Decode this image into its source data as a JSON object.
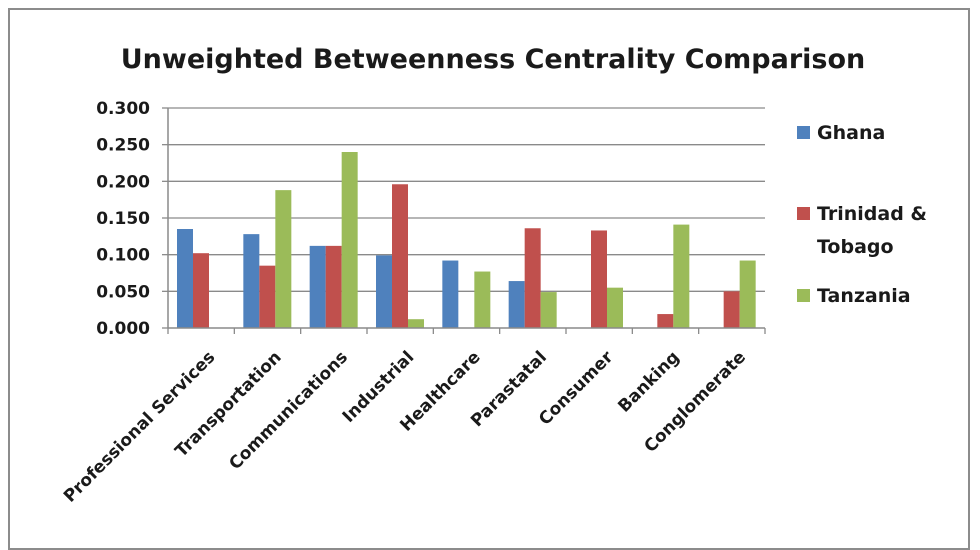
{
  "chart_data": {
    "type": "bar",
    "title": "Unweighted Betweenness Centrality Comparison",
    "xlabel": "",
    "ylabel": "",
    "ylim": [
      0,
      0.3
    ],
    "yticks": [
      "0.000",
      "0.050",
      "0.100",
      "0.150",
      "0.200",
      "0.250",
      "0.300"
    ],
    "categories": [
      "Professional Services",
      "Transportation",
      "Communications",
      "Industrial",
      "Healthcare",
      "Parastatal",
      "Consumer",
      "Banking",
      "Conglomerate"
    ],
    "series": [
      {
        "name": "Ghana",
        "color": "#4f81bd",
        "values": [
          0.135,
          0.128,
          0.112,
          0.099,
          0.092,
          0.064,
          0.0,
          0.0,
          0.0
        ]
      },
      {
        "name": "Trinidad & Tobago",
        "color": "#c0504d",
        "values": [
          0.102,
          0.085,
          0.112,
          0.196,
          0.0,
          0.136,
          0.133,
          0.019,
          0.05
        ]
      },
      {
        "name": "Tanzania",
        "color": "#9bbb59",
        "values": [
          0.0,
          0.188,
          0.24,
          0.012,
          0.077,
          0.049,
          0.055,
          0.141,
          0.092
        ]
      }
    ],
    "legend_labels": [
      [
        "Ghana"
      ],
      [
        "Trinidad &",
        "Tobago"
      ],
      [
        "Tanzania"
      ]
    ],
    "grid": true,
    "legend_position": "right"
  }
}
